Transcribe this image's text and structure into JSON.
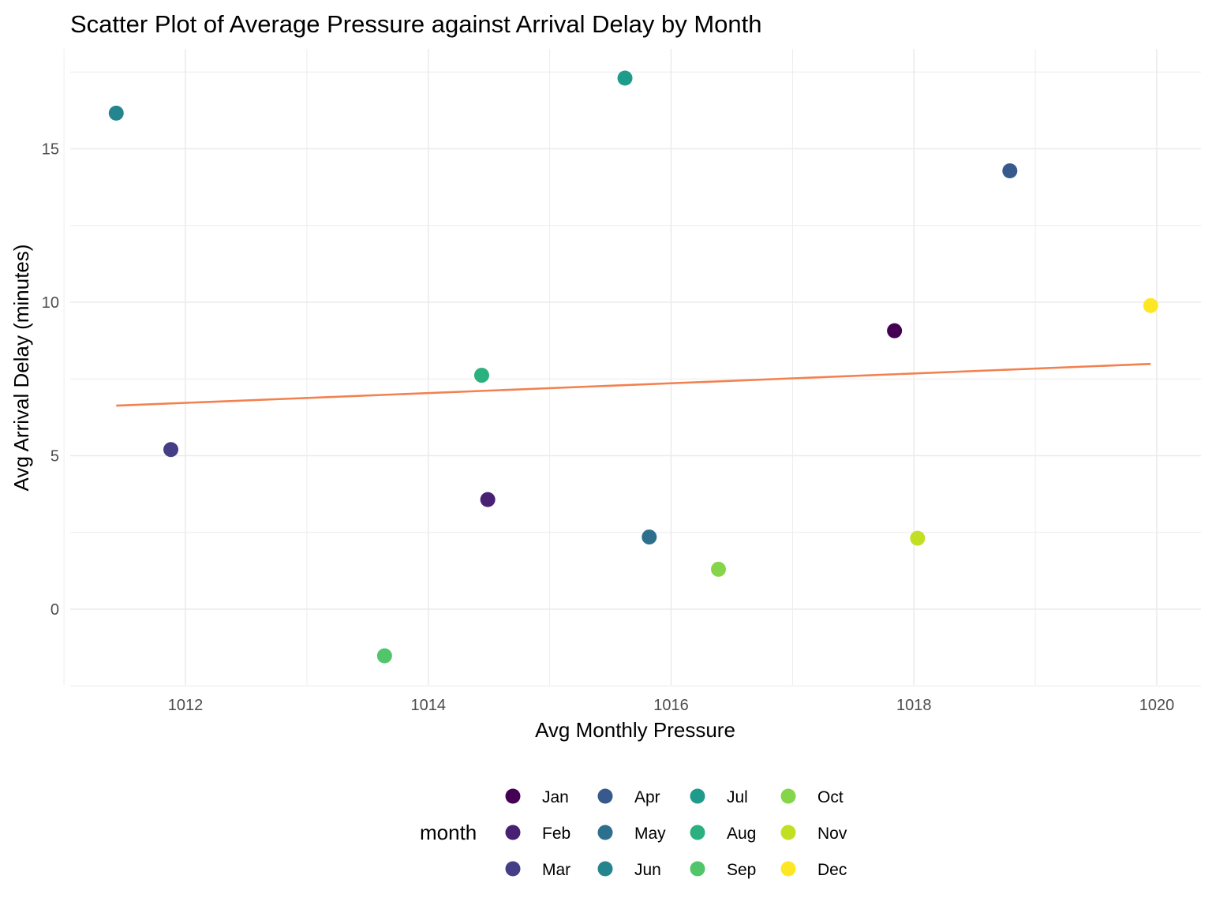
{
  "chart_data": {
    "type": "scatter",
    "title": "Scatter Plot of Average Pressure against Arrival Delay by Month",
    "xlabel": "Avg Monthly Pressure",
    "ylabel": "Avg Arrival Delay (minutes)",
    "xlim": [
      1011.0,
      1020.5
    ],
    "ylim": [
      -2.5,
      18.0
    ],
    "x_ticks": [
      1012,
      1014,
      1016,
      1018,
      1020
    ],
    "y_ticks": [
      0,
      5,
      10,
      15
    ],
    "grid": true,
    "legend": {
      "title": "month",
      "position": "bottom",
      "layout": "3 rows x 4 columns"
    },
    "series": [
      {
        "name": "Jan",
        "color": "#440154",
        "x": 1017.84,
        "y": 9.07
      },
      {
        "name": "Feb",
        "color": "#482173",
        "x": 1014.49,
        "y": 3.57
      },
      {
        "name": "Mar",
        "color": "#433E85",
        "x": 1011.88,
        "y": 5.2
      },
      {
        "name": "Apr",
        "color": "#38598C",
        "x": 1018.79,
        "y": 14.28
      },
      {
        "name": "May",
        "color": "#2D708E",
        "x": 1015.82,
        "y": 2.35
      },
      {
        "name": "Jun",
        "color": "#25858E",
        "x": 1011.43,
        "y": 16.16
      },
      {
        "name": "Jul",
        "color": "#1E9B8A",
        "x": 1015.62,
        "y": 17.3
      },
      {
        "name": "Aug",
        "color": "#2BB07F",
        "x": 1014.44,
        "y": 7.62
      },
      {
        "name": "Sep",
        "color": "#51C56A",
        "x": 1013.64,
        "y": -1.52
      },
      {
        "name": "Oct",
        "color": "#85D54A",
        "x": 1016.39,
        "y": 1.3
      },
      {
        "name": "Nov",
        "color": "#C2DF23",
        "x": 1018.03,
        "y": 2.31
      },
      {
        "name": "Dec",
        "color": "#FDE725",
        "x": 1019.95,
        "y": 9.89
      }
    ],
    "trendline": {
      "color": "#F28150",
      "x": [
        1011.43,
        1019.95
      ],
      "y": [
        6.63,
        7.99
      ]
    }
  }
}
